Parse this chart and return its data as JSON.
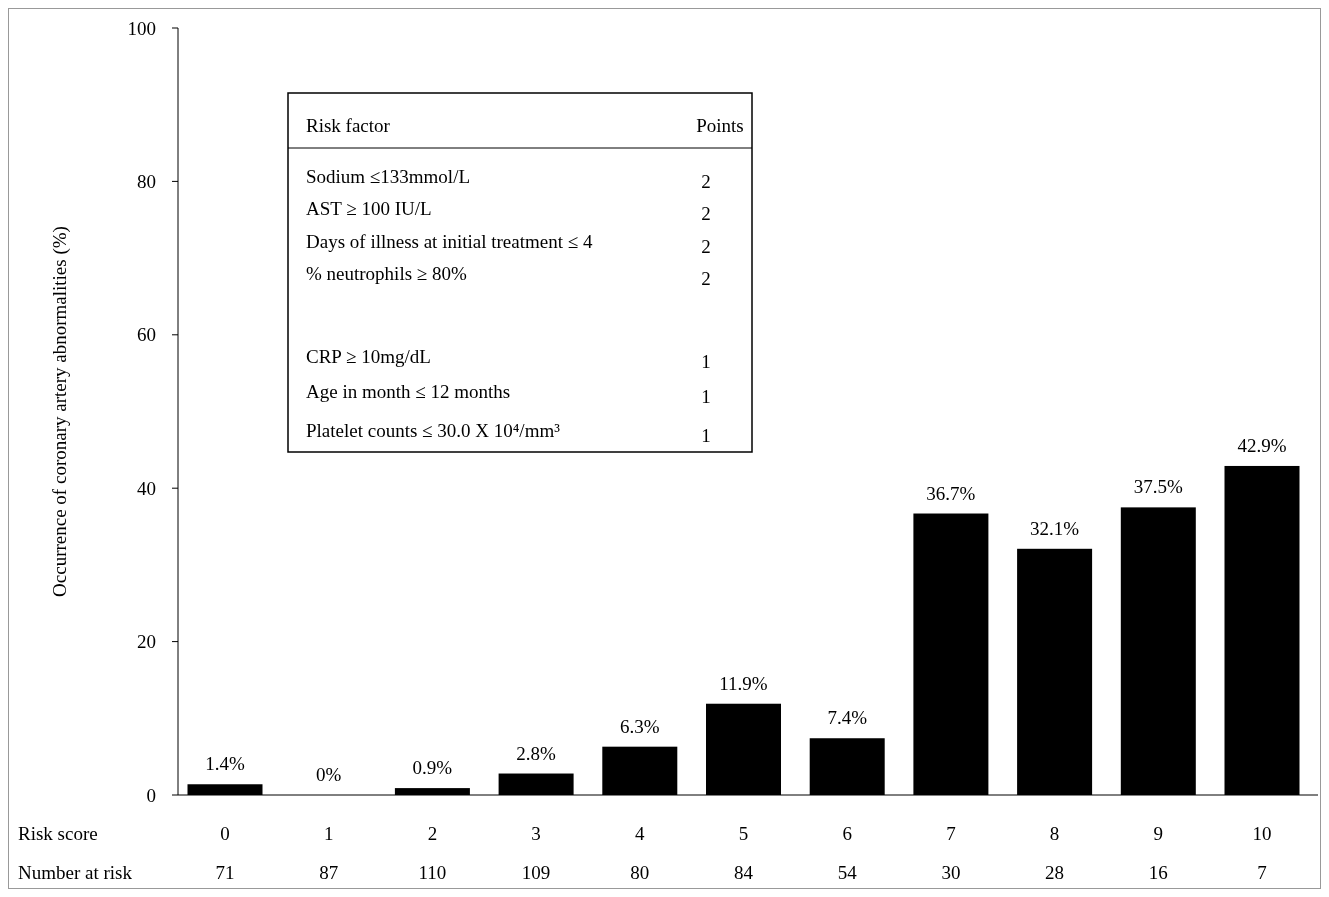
{
  "chart_data": {
    "type": "bar",
    "ylabel": "Occurrence of coronary artery abnormalities (%)",
    "xlabel": "Risk score",
    "categories": [
      "0",
      "1",
      "2",
      "3",
      "4",
      "5",
      "6",
      "7",
      "8",
      "9",
      "10"
    ],
    "values": [
      1.4,
      0,
      0.9,
      2.8,
      6.3,
      11.9,
      7.4,
      36.7,
      32.1,
      37.5,
      42.9
    ],
    "value_labels": [
      "1.4%",
      "0%",
      "0.9%",
      "2.8%",
      "6.3%",
      "11.9%",
      "7.4%",
      "36.7%",
      "32.1%",
      "37.5%",
      "42.9%"
    ],
    "color": "#000000",
    "ylim": [
      0,
      100
    ],
    "yticks": [
      0,
      20,
      40,
      60,
      80,
      100
    ],
    "annotations": [
      "Number at risk",
      "71",
      "87",
      "110",
      "109",
      "80",
      "84",
      "54",
      "30",
      "28",
      "16",
      "7",
      "Risk factor",
      "Points",
      "Sodium ≤133mmol/L",
      "2",
      "AST ≥ 100 IU/L",
      "2",
      "Days of illness at initial treatment ≤ 4",
      "2",
      "% neutrophils ≥ 80%",
      "2",
      "CRP ≥ 10mg/dL",
      "1",
      "Age in month ≤ 12 months",
      "1",
      "Platelet counts ≤ 30.0 X 10⁴/mm³",
      "1"
    ]
  }
}
